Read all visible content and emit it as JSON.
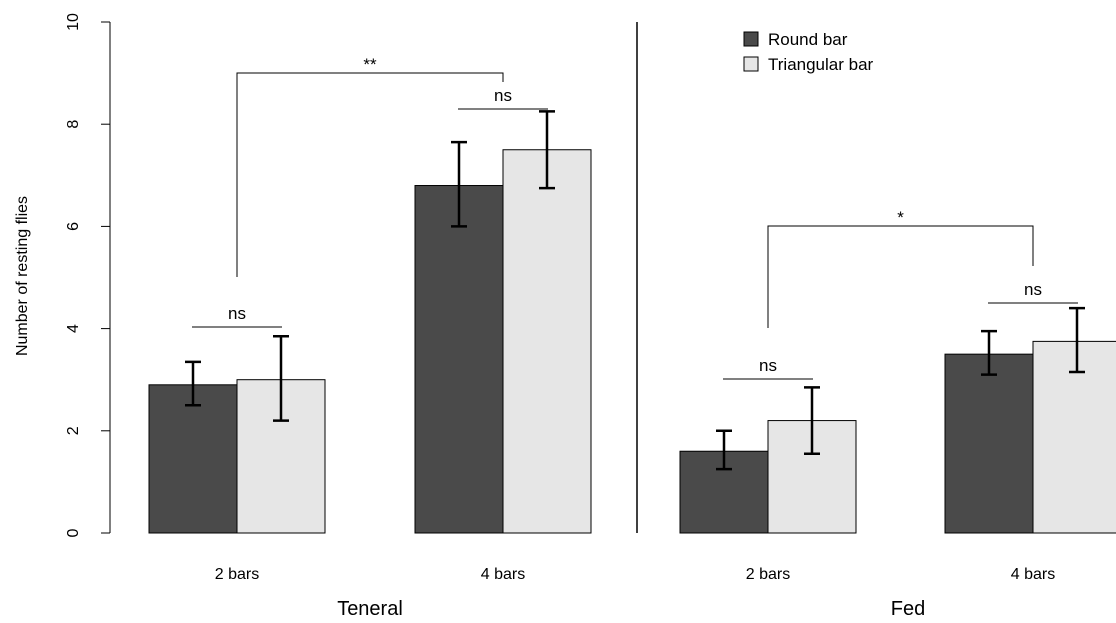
{
  "chart_data": {
    "type": "bar",
    "ylabel": "Number of resting flies",
    "ylim": [
      0,
      10
    ],
    "yticks": [
      0,
      2,
      4,
      6,
      8,
      10
    ],
    "legend": {
      "placement": "top-right",
      "entries": [
        {
          "name": "Round bar",
          "color": "#4a4a4a"
        },
        {
          "name": "Triangular bar",
          "color": "#e6e6e6"
        }
      ]
    },
    "panels": [
      {
        "title": "Teneral",
        "categories": [
          "2 bars",
          "4 bars"
        ],
        "series": [
          {
            "name": "Round bar",
            "values": [
              2.9,
              6.8
            ],
            "err_low": [
              2.5,
              6.0
            ],
            "err_high": [
              3.35,
              7.65
            ]
          },
          {
            "name": "Triangular bar",
            "values": [
              3.0,
              7.5
            ],
            "err_low": [
              2.2,
              6.75
            ],
            "err_high": [
              3.85,
              8.25
            ]
          }
        ],
        "within_sig": [
          "ns",
          "ns"
        ],
        "between_sig": "**"
      },
      {
        "title": "Fed",
        "categories": [
          "2 bars",
          "4 bars"
        ],
        "series": [
          {
            "name": "Round bar",
            "values": [
              1.6,
              3.5
            ],
            "err_low": [
              1.25,
              3.1
            ],
            "err_high": [
              2.0,
              3.95
            ]
          },
          {
            "name": "Triangular bar",
            "values": [
              2.2,
              3.75
            ],
            "err_low": [
              1.55,
              3.15
            ],
            "err_high": [
              2.85,
              4.4
            ]
          }
        ],
        "within_sig": [
          "ns",
          "ns"
        ],
        "between_sig": "*"
      }
    ]
  }
}
